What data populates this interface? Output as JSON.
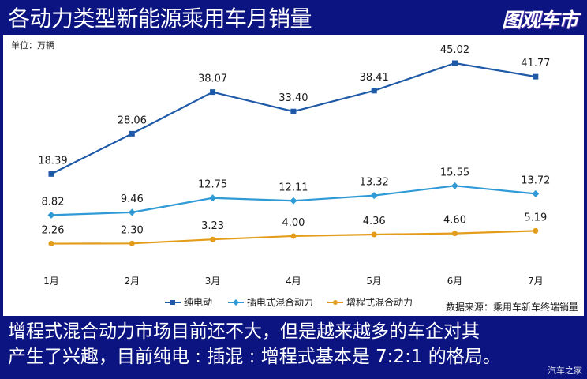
{
  "header": {
    "title": "各动力类型新能源乘用车月销量",
    "brand": "图观车市"
  },
  "chart_data": {
    "type": "line",
    "unit_label": "单位：万辆",
    "categories": [
      "1月",
      "2月",
      "3月",
      "4月",
      "5月",
      "6月",
      "7月"
    ],
    "series": [
      {
        "name": "纯电动",
        "color": "#1f5aa8",
        "marker": "square",
        "values": [
          18.39,
          28.06,
          38.07,
          33.4,
          38.41,
          45.02,
          41.77
        ],
        "labels": [
          "18.39",
          "28.06",
          "38.07",
          "33.40",
          "38.41",
          "45.02",
          "41.77"
        ]
      },
      {
        "name": "插电式混合动力",
        "color": "#2f9ad6",
        "marker": "diamond",
        "values": [
          8.82,
          9.46,
          12.75,
          12.11,
          13.32,
          15.55,
          13.72
        ],
        "labels": [
          "8.82",
          "9.46",
          "12.75",
          "12.11",
          "13.32",
          "15.55",
          "13.72"
        ]
      },
      {
        "name": "增程式混合动力",
        "color": "#e39d1b",
        "marker": "circle",
        "values": [
          2.26,
          2.3,
          3.23,
          4.0,
          4.36,
          4.6,
          5.19
        ],
        "labels": [
          "2.26",
          "2.30",
          "3.23",
          "4.00",
          "4.36",
          "4.60",
          "5.19"
        ]
      }
    ],
    "legend_position": "bottom",
    "grid": false,
    "source": "数据来源：乘用车新车终端销量"
  },
  "caption": {
    "line1": "增程式混合动力市场目前还不大，但是越来越多的车企对其",
    "line2": "产生了兴趣，目前纯电 : 插混 : 增程式基本是 7:2:1 的格局。"
  },
  "watermark": "汽车之家"
}
